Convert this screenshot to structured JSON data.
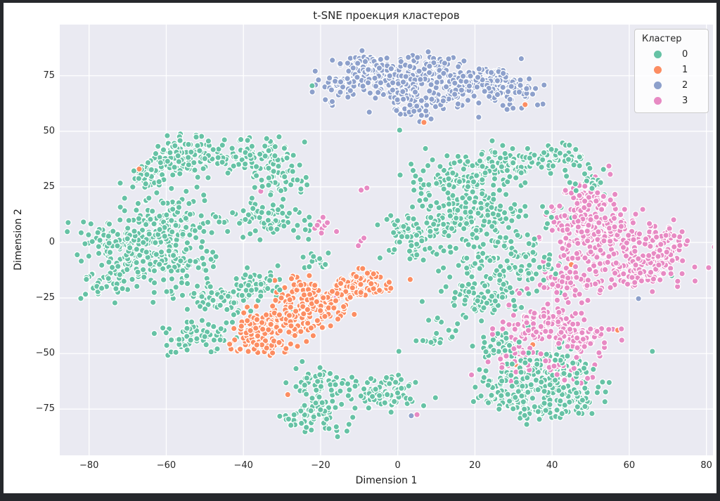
{
  "window": {
    "frame_color": "#26282c",
    "figure_bg": "#ffffff"
  },
  "chart_data": {
    "type": "scatter",
    "title": "t-SNE проекция кластеров",
    "xlabel": "Dimension 1",
    "ylabel": "Dimension 2",
    "xlim": [
      -87.6,
      81.7
    ],
    "ylim": [
      -95.8,
      98.0
    ],
    "x_ticks": [
      -80,
      -60,
      -40,
      -20,
      0,
      20,
      40,
      60,
      80
    ],
    "y_ticks": [
      -75,
      -50,
      -25,
      0,
      25,
      50,
      75
    ],
    "x_tick_labels": [
      "−80",
      "−60",
      "−40",
      "−20",
      "0",
      "20",
      "40",
      "60",
      "80"
    ],
    "y_tick_labels": [
      "−75",
      "−50",
      "−25",
      "0",
      "25",
      "50",
      "75"
    ],
    "grid": true,
    "plot_bg": "#eaeaf2",
    "grid_color": "#ffffff",
    "marker": {
      "radius": 4.2,
      "edge_color": "#ffffff",
      "edge_width": 1.3
    },
    "seed": 42,
    "legend": {
      "title": "Кластер",
      "position": "upper right",
      "entries": [
        {
          "label": "0",
          "color": "#66c2a5"
        },
        {
          "label": "1",
          "color": "#fc8d62"
        },
        {
          "label": "2",
          "color": "#8da0cb"
        },
        {
          "label": "3",
          "color": "#e78ac3"
        }
      ]
    },
    "clusters": [
      {
        "id": 0,
        "color": "#66c2a5",
        "blobs": [
          [
            -55,
            39,
            5.5,
            4.5,
            120
          ],
          [
            -64,
            30,
            3.5,
            3,
            45
          ],
          [
            -60,
            9,
            7,
            5.5,
            120
          ],
          [
            -63,
            -8,
            8,
            6.5,
            150
          ],
          [
            -73,
            -1,
            5,
            5,
            80
          ],
          [
            -76,
            -18,
            4,
            4,
            35
          ],
          [
            -53,
            -42,
            5,
            4,
            65
          ],
          [
            -46,
            -26,
            5.5,
            4.5,
            75
          ],
          [
            -35,
            -18,
            4,
            4,
            40
          ],
          [
            -36,
            39,
            4.5,
            4,
            85
          ],
          [
            -30,
            28,
            3.5,
            3.5,
            45
          ],
          [
            -33,
            10,
            5,
            4.5,
            65
          ],
          [
            -20.5,
            -9,
            2,
            2,
            18
          ],
          [
            20,
            10,
            8.5,
            7.5,
            180
          ],
          [
            14,
            28,
            6,
            5,
            95
          ],
          [
            29,
            35,
            5.5,
            4.5,
            95
          ],
          [
            43,
            38,
            3.5,
            3.5,
            45
          ],
          [
            28,
            -10,
            6.5,
            5.5,
            105
          ],
          [
            22,
            -25,
            5.5,
            4.5,
            85
          ],
          [
            4,
            4,
            4.5,
            5.5,
            70
          ],
          [
            10,
            -40,
            4,
            4,
            18
          ],
          [
            -20,
            -64,
            3.5,
            3.5,
            55
          ],
          [
            -21,
            -77,
            4.5,
            3.5,
            65
          ],
          [
            -3,
            -68,
            4.5,
            4,
            85
          ],
          [
            32,
            -64,
            5.5,
            5,
            100
          ],
          [
            42,
            -57,
            4.5,
            4.5,
            80
          ],
          [
            47,
            -70,
            3.5,
            3.5,
            45
          ],
          [
            36,
            -76,
            4,
            3,
            40
          ],
          [
            24,
            -70,
            2.5,
            2.5,
            15
          ],
          [
            26,
            -48,
            3.5,
            3.5,
            45
          ],
          [
            50,
            27,
            2.5,
            2.5,
            25
          ]
        ],
        "points": [
          [
            -22.2,
            70.5
          ],
          [
            0.5,
            50.5
          ],
          [
            0.3,
            -49
          ],
          [
            71,
            -15
          ],
          [
            66,
            -49
          ],
          [
            13.5,
            -39.5
          ],
          [
            8,
            -35
          ]
        ]
      },
      {
        "id": 1,
        "color": "#fc8d62",
        "blobs": [
          [
            -30,
            -35,
            5.5,
            4.5,
            130
          ],
          [
            -38,
            -42,
            3.5,
            3.5,
            55
          ],
          [
            -21,
            -28,
            4.5,
            3.5,
            75
          ],
          [
            -13,
            -21,
            3.5,
            3,
            55
          ],
          [
            -8,
            -19,
            4,
            3,
            45
          ],
          [
            -33,
            -47,
            2.5,
            2.5,
            20
          ],
          [
            -25,
            -20,
            3,
            2.5,
            30
          ]
        ],
        "points": [
          [
            33,
            62
          ],
          [
            6.8,
            54
          ],
          [
            -67,
            33
          ],
          [
            -63.5,
            32.5
          ],
          [
            -54.5,
            33
          ],
          [
            -51.5,
            -43.5
          ],
          [
            -28.5,
            -68.5
          ],
          [
            -1,
            -3
          ],
          [
            35,
            -46
          ],
          [
            30.5,
            -55
          ],
          [
            35,
            -5
          ],
          [
            45,
            -10
          ],
          [
            57,
            -39.5
          ]
        ]
      },
      {
        "id": 2,
        "color": "#8da0cb",
        "blobs": [
          [
            -14,
            71,
            3.5,
            3.5,
            55
          ],
          [
            -6,
            78,
            4.5,
            3.5,
            85
          ],
          [
            2,
            72,
            5,
            5,
            120
          ],
          [
            3,
            61,
            3.5,
            3.5,
            55
          ],
          [
            13,
            70,
            4.5,
            4.5,
            80
          ],
          [
            24,
            72,
            5,
            4,
            100
          ],
          [
            30,
            66,
            3,
            3,
            35
          ],
          [
            9,
            80,
            3,
            3,
            40
          ]
        ],
        "points": [
          [
            62.4,
            -25.3
          ],
          [
            3.5,
            -78
          ]
        ]
      },
      {
        "id": 3,
        "color": "#e78ac3",
        "blobs": [
          [
            55,
            0,
            7.5,
            6.5,
            200
          ],
          [
            47,
            10,
            4.5,
            4.5,
            80
          ],
          [
            49,
            21,
            4,
            4,
            60
          ],
          [
            62,
            -12,
            5.5,
            4.5,
            90
          ],
          [
            70,
            -3,
            3.5,
            4.5,
            65
          ],
          [
            45,
            -18,
            4.5,
            3.5,
            60
          ],
          [
            38,
            -38,
            6,
            4.5,
            120
          ],
          [
            48,
            -43,
            4.5,
            3.5,
            65
          ],
          [
            30,
            -52,
            3.5,
            3.5,
            45
          ],
          [
            44,
            -58,
            3,
            3,
            30
          ],
          [
            -18.5,
            7,
            1.8,
            2,
            9
          ],
          [
            -10,
            1,
            1,
            1,
            3
          ]
        ],
        "points": [
          [
            -35.5,
            23
          ],
          [
            -9.5,
            23.5
          ],
          [
            -8,
            24.5
          ],
          [
            -16,
            -24.7
          ],
          [
            5,
            -77.5
          ]
        ]
      }
    ]
  }
}
